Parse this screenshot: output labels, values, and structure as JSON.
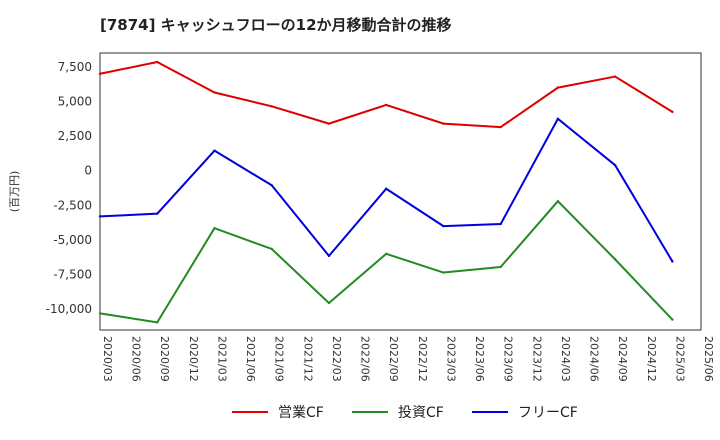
{
  "chart_data": {
    "type": "line",
    "title": "[7874]  キャッシュフローの12か月移動合計の推移",
    "ylabel": "(百万円)",
    "xlabel": "",
    "ylim": [
      -11500,
      8500
    ],
    "y_ticks": [
      7500,
      5000,
      2500,
      0,
      -2500,
      -5000,
      -7500,
      -10000
    ],
    "y_tick_labels": [
      "7,500",
      "5,000",
      "2,500",
      "0",
      "-2,500",
      "-5,000",
      "-7,500",
      "-10,000"
    ],
    "x_tick_labels": [
      "2020/03",
      "2020/06",
      "2020/09",
      "2020/12",
      "2021/03",
      "2021/06",
      "2021/09",
      "2021/12",
      "2022/03",
      "2022/06",
      "2022/09",
      "2022/12",
      "2023/03",
      "2023/06",
      "2023/09",
      "2023/12",
      "2024/03",
      "2024/06",
      "2024/09",
      "2024/12",
      "2025/03",
      "2025/06"
    ],
    "point_dates": [
      "2020/03",
      "2020/09",
      "2021/03",
      "2021/09",
      "2022/03",
      "2022/09",
      "2023/03",
      "2023/09",
      "2024/03",
      "2024/09",
      "2025/03"
    ],
    "series": [
      {
        "name": "営業CF",
        "color": "#dd0000",
        "values": [
          7000,
          7850,
          5650,
          4650,
          3400,
          4750,
          3400,
          3150,
          6000,
          6800,
          4250
        ]
      },
      {
        "name": "投資CF",
        "color": "#228b22",
        "values": [
          -10300,
          -10950,
          -4150,
          -5650,
          -9550,
          -6000,
          -7350,
          -6950,
          -2200,
          -6400,
          -10750
        ]
      },
      {
        "name": "フリーCF",
        "color": "#0000dd",
        "values": [
          -3300,
          -3100,
          1450,
          -1050,
          -6150,
          -1300,
          -4000,
          -3850,
          3750,
          400,
          -6550
        ]
      }
    ]
  }
}
